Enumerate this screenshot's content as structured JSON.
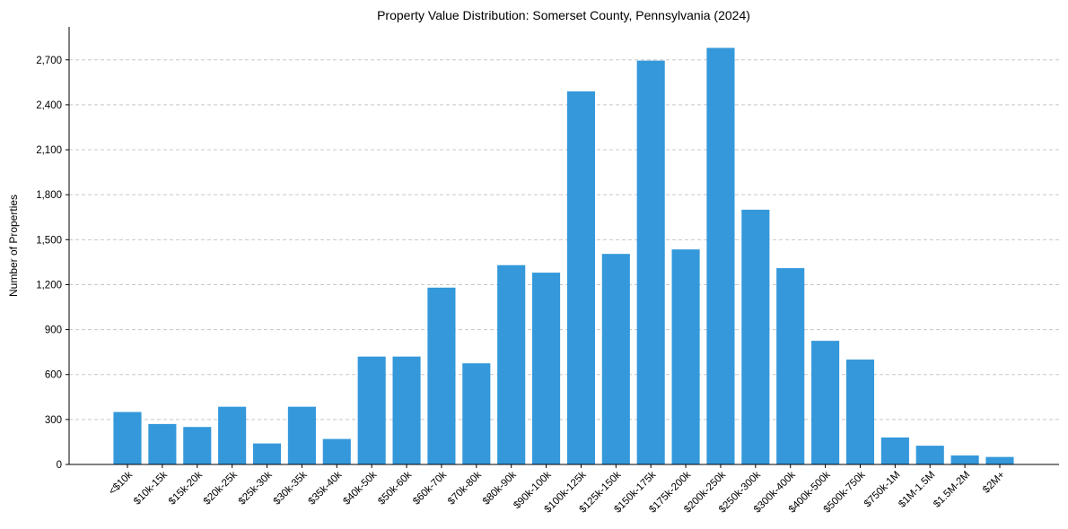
{
  "chart_data": {
    "type": "bar",
    "title": "Property Value Distribution: Somerset County, Pennsylvania (2024)",
    "xlabel": "",
    "ylabel": "Number of Properties",
    "categories": [
      "<$10k",
      "$10k-15k",
      "$15k-20k",
      "$20k-25k",
      "$25k-30k",
      "$30k-35k",
      "$35k-40k",
      "$40k-50k",
      "$50k-60k",
      "$60k-70k",
      "$70k-80k",
      "$80k-90k",
      "$90k-100k",
      "$100k-125k",
      "$125k-150k",
      "$150k-175k",
      "$175k-200k",
      "$200k-250k",
      "$250k-300k",
      "$300k-400k",
      "$400k-500k",
      "$500k-750k",
      "$750k-1M",
      "$1M-1.5M",
      "$1.5M-2M",
      "$2M+"
    ],
    "values": [
      350,
      270,
      250,
      385,
      140,
      385,
      170,
      720,
      720,
      1180,
      675,
      1330,
      1280,
      2490,
      1405,
      2695,
      1435,
      2780,
      1700,
      1310,
      825,
      700,
      180,
      125,
      60,
      50
    ],
    "yticks": [
      0,
      300,
      600,
      900,
      1200,
      1500,
      1800,
      2100,
      2400,
      2700
    ],
    "ytick_labels": [
      "0",
      "300",
      "600",
      "900",
      "1,200",
      "1,500",
      "1,800",
      "2,100",
      "2,400",
      "2,700"
    ],
    "ylim": [
      0,
      2920
    ],
    "grid": true,
    "color": "#3498db"
  }
}
